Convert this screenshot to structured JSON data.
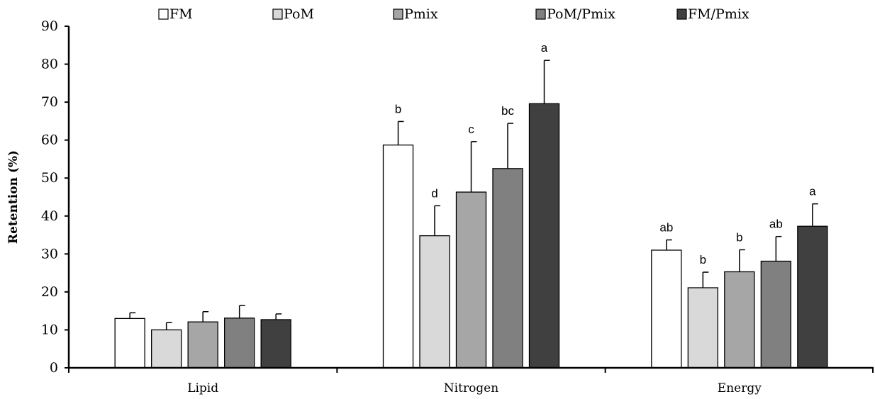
{
  "chart_data": {
    "type": "bar",
    "title": "",
    "xlabel": "",
    "ylabel": "Retention (%)",
    "ylim": [
      0,
      90
    ],
    "yticks": [
      0,
      10,
      20,
      30,
      40,
      50,
      60,
      70,
      80,
      90
    ],
    "grid": false,
    "legend_position": "top",
    "categories": [
      "Lipid",
      "Nitrogen",
      "Energy"
    ],
    "series": [
      {
        "name": "FM",
        "color": "#ffffff",
        "values": [
          13.0,
          58.7,
          31.0
        ],
        "errors": [
          1.5,
          6.2,
          2.7
        ],
        "significance": [
          "",
          "b",
          "ab"
        ]
      },
      {
        "name": "PoM",
        "color": "#d9d9d9",
        "values": [
          10.0,
          34.8,
          21.1
        ],
        "errors": [
          1.9,
          7.9,
          4.1
        ],
        "significance": [
          "",
          "d",
          "b"
        ]
      },
      {
        "name": "Pmix",
        "color": "#a6a6a6",
        "values": [
          12.1,
          46.3,
          25.3
        ],
        "errors": [
          2.7,
          13.3,
          5.8
        ],
        "significance": [
          "",
          "c",
          "b"
        ]
      },
      {
        "name": "PoM/Pmix",
        "color": "#808080",
        "values": [
          13.1,
          52.5,
          28.1
        ],
        "errors": [
          3.3,
          11.9,
          6.5
        ],
        "significance": [
          "",
          "bc",
          "ab"
        ]
      },
      {
        "name": "FM/Pmix",
        "color": "#404040",
        "values": [
          12.7,
          69.6,
          37.3
        ],
        "errors": [
          1.5,
          11.4,
          5.9
        ],
        "significance": [
          "",
          "a",
          "a"
        ]
      }
    ]
  }
}
